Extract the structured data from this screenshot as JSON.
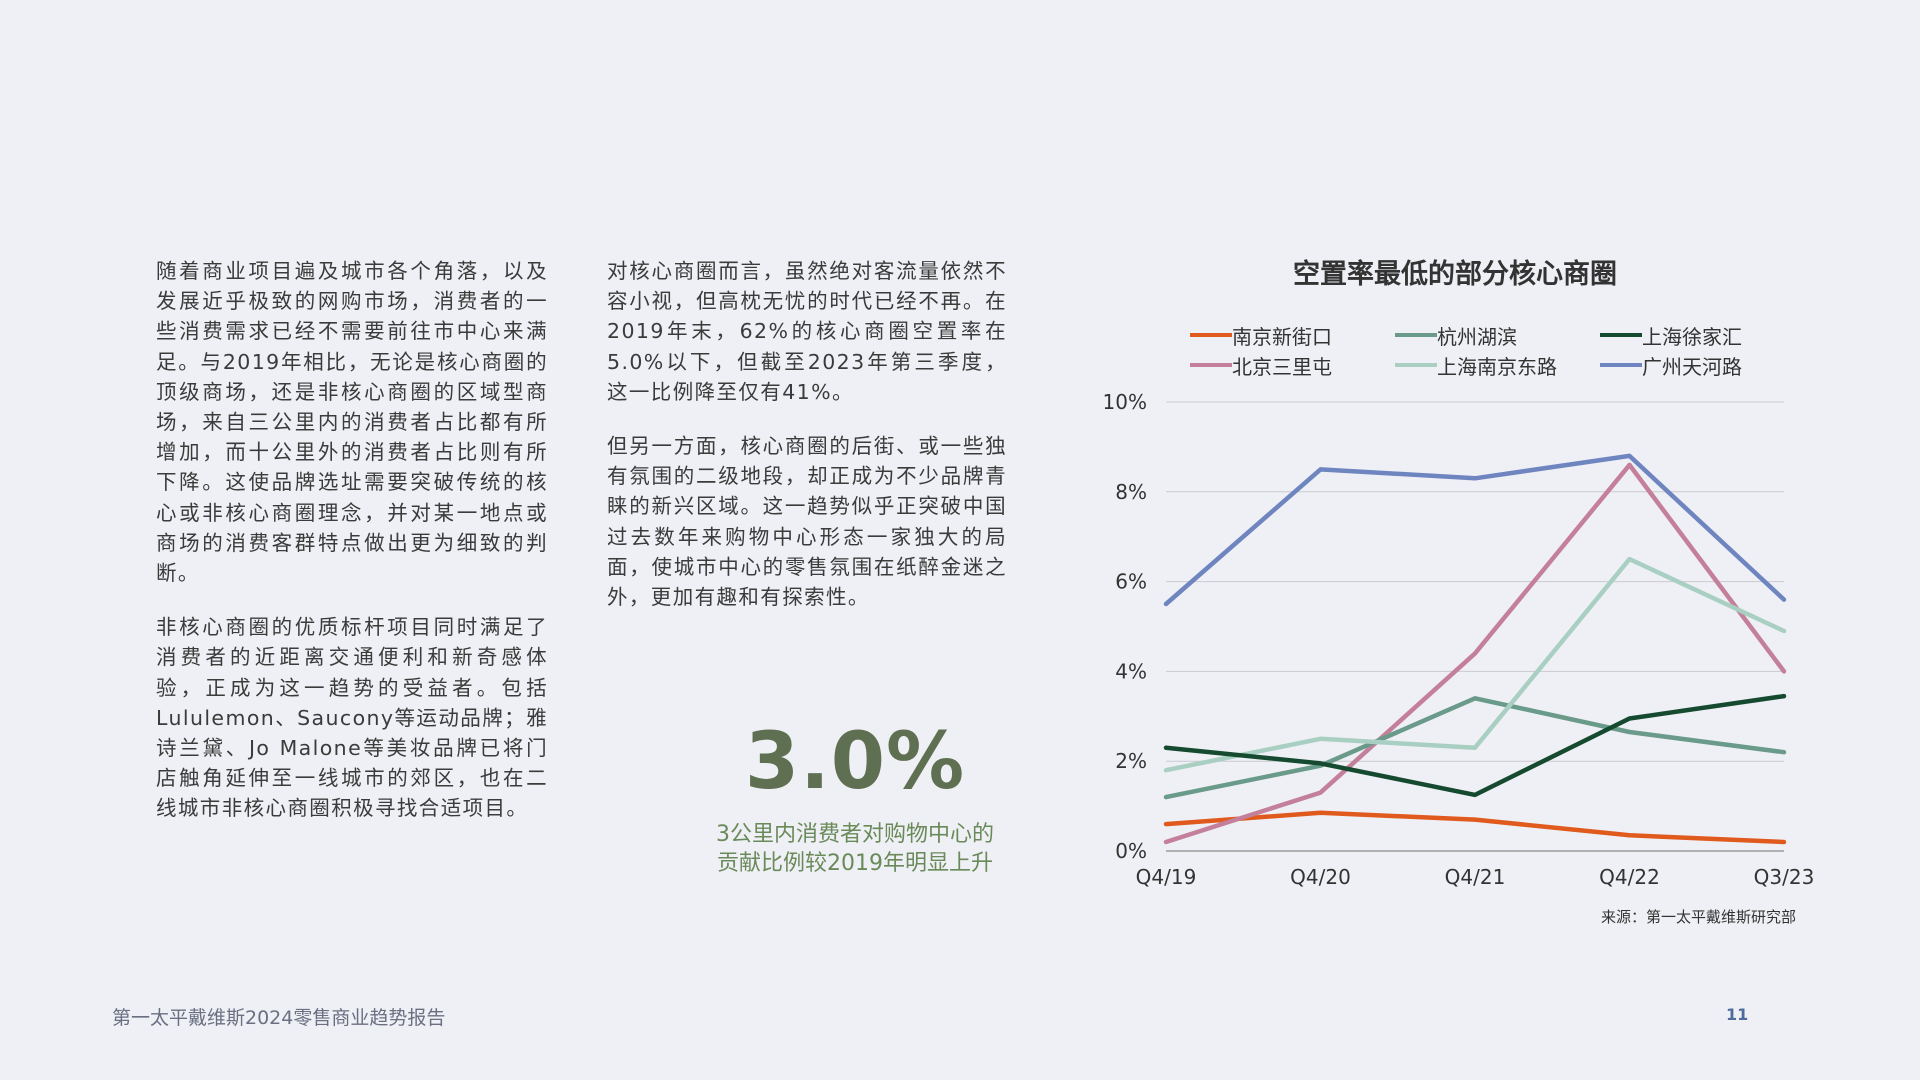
{
  "left_column": {
    "paragraphs": [
      "随着商业项目遍及城市各个角落，以及发展近乎极致的网购市场，消费者的一些消费需求已经不需要前往市中心来满足。与2019年相比，无论是核心商圈的顶级商场，还是非核心商圈的区域型商场，来自三公里内的消费者占比都有所增加，而十公里外的消费者占比则有所下降。这使品牌选址需要突破传统的核心或非核心商圈理念，并对某一地点或商场的消费客群特点做出更为细致的判断。",
      "非核心商圈的优质标杆项目同时满足了消费者的近距离交通便利和新奇感体验，正成为这一趋势的受益者。包括Lululemon、Saucony等运动品牌；雅诗兰黛、Jo Malone等美妆品牌已将门店触角延伸至一线城市的郊区，也在二线城市非核心商圈积极寻找合适项目。"
    ]
  },
  "middle_column": {
    "paragraphs": [
      "对核心商圈而言，虽然绝对客流量依然不容小视，但高枕无忧的时代已经不再。在2019年末，62%的核心商圈空置率在5.0%以下，但截至2023年第三季度，这一比例降至仅有41%。",
      "但另一方面，核心商圈的后街、或一些独有氛围的二级地段，却正成为不少品牌青睐的新兴区域。这一趋势似乎正突破中国过去数年来购物中心形态一家独大的局面，使城市中心的零售氛围在纸醉金迷之外，更加有趣和有探索性。"
    ]
  },
  "highlight": {
    "value": "3.0%",
    "caption": "3公里内消费者对购物中心的贡献比例较2019年明显上升"
  },
  "chart_data": {
    "type": "line",
    "title": "空置率最低的部分核心商圈",
    "x": [
      "Q4/19",
      "Q4/20",
      "Q4/21",
      "Q4/22",
      "Q3/23"
    ],
    "yticks": [
      "0%",
      "2%",
      "4%",
      "6%",
      "8%",
      "10%"
    ],
    "ylim": [
      0,
      10
    ],
    "grid": true,
    "legend_position": "top",
    "series": [
      {
        "name": "南京新街口",
        "color": "#e05a1e",
        "values": [
          0.6,
          0.85,
          0.7,
          0.35,
          0.2
        ]
      },
      {
        "name": "北京三里屯",
        "color": "#c4809a",
        "values": [
          0.2,
          1.3,
          4.4,
          8.6,
          4.0
        ]
      },
      {
        "name": "杭州湖滨",
        "color": "#6a9a8a",
        "values": [
          1.2,
          1.9,
          3.4,
          2.65,
          2.2
        ]
      },
      {
        "name": "上海南京东路",
        "color": "#a8cfc2",
        "values": [
          1.8,
          2.5,
          2.3,
          6.5,
          4.9
        ]
      },
      {
        "name": "上海徐家汇",
        "color": "#154a30",
        "values": [
          2.3,
          1.95,
          1.25,
          2.95,
          3.45
        ]
      },
      {
        "name": "广州天河路",
        "color": "#6e85c0",
        "values": [
          5.5,
          8.5,
          8.3,
          8.8,
          5.6
        ]
      }
    ]
  },
  "source": "来源：第一太平戴维斯研究部",
  "footer": {
    "title": "第一太平戴维斯2024零售商业趋势报告",
    "page_number": "11"
  }
}
